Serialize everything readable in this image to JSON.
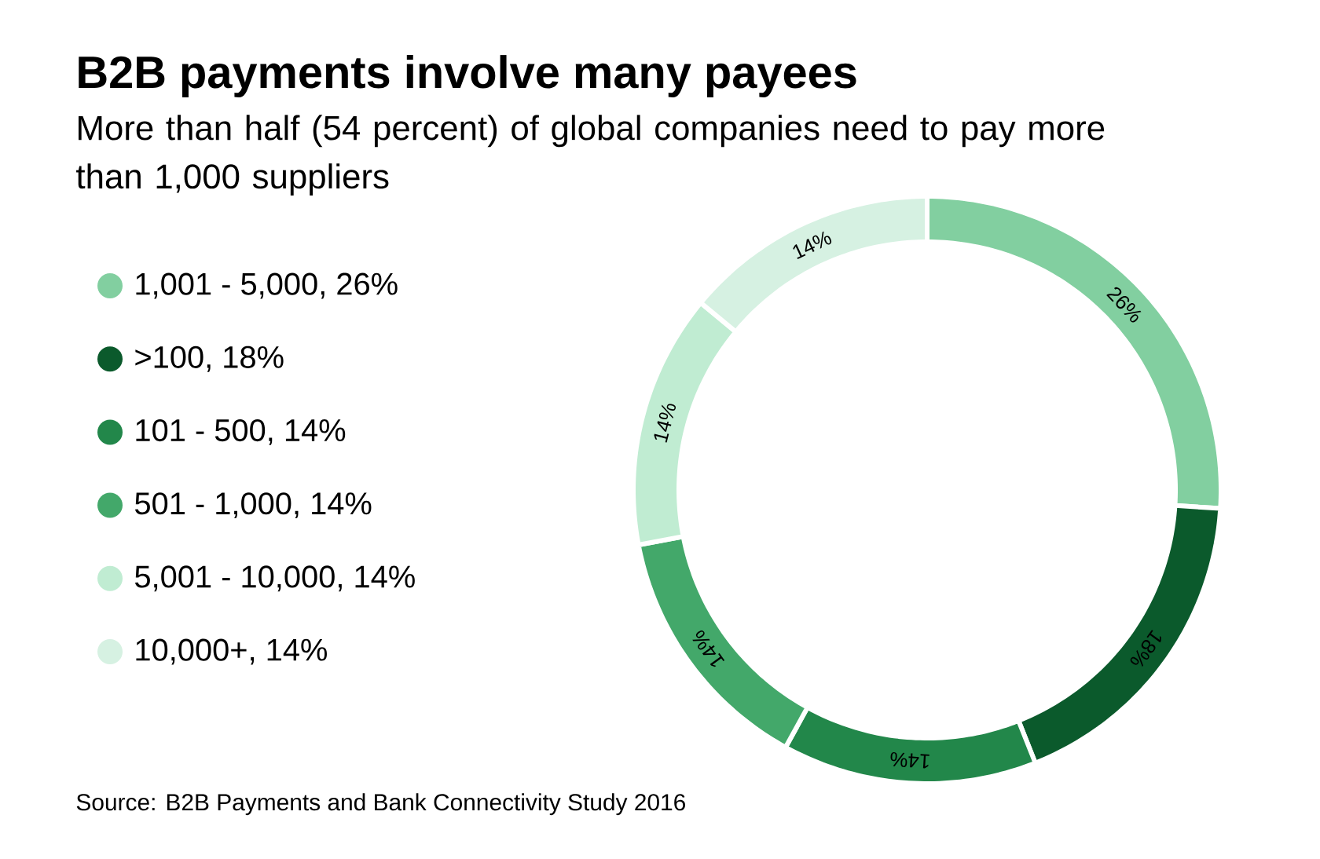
{
  "chart_data": {
    "type": "donut",
    "title": "B2B payments involve many payees",
    "subtitle": "More than half (54 percent) of global companies need to pay more than 1,000 suppliers",
    "categories": [
      "1,001 - 5,000, 26%",
      ">100, 18%",
      "101 - 500, 14%",
      "501 - 1,000, 14%",
      "5,001 - 10,000, 14%",
      "10,000+, 14%"
    ],
    "values": [
      26,
      18,
      14,
      14,
      14,
      14
    ],
    "value_labels": [
      "26%",
      "18%",
      "14%",
      "14%",
      "14%",
      "14%"
    ],
    "colors": [
      "#82cfa0",
      "#0b5a2c",
      "#22874a",
      "#43a86a",
      "#c0ecd2",
      "#d6f1e2"
    ],
    "legend": "left",
    "annotations": [
      "Source: B2B Payments and Bank Connectivity Study 2016"
    ]
  }
}
